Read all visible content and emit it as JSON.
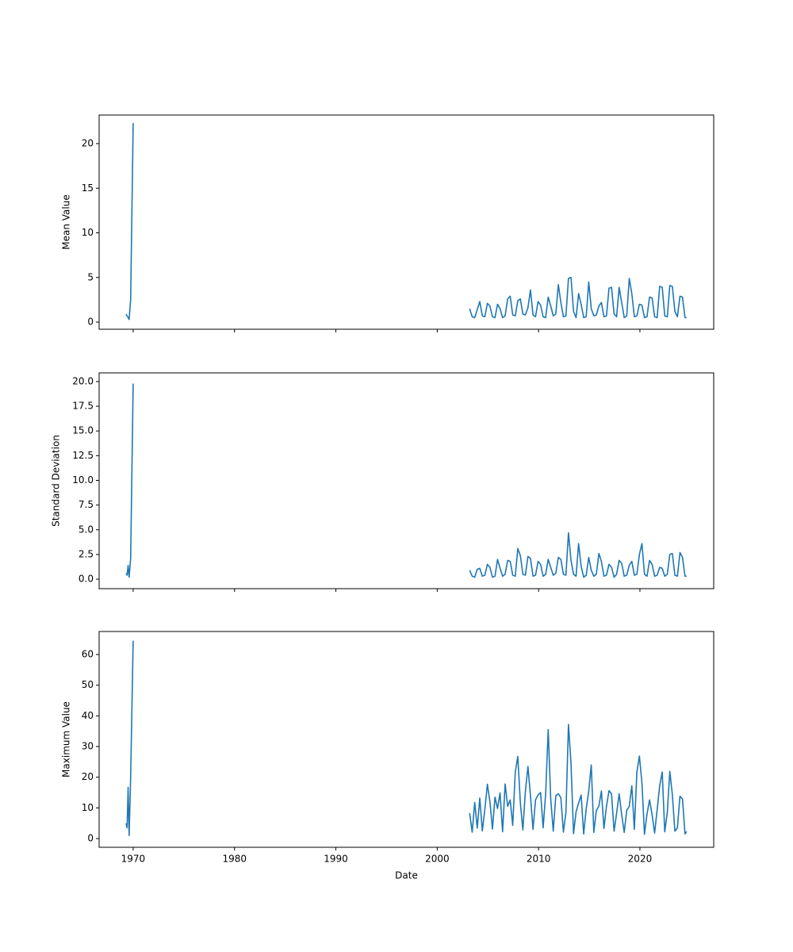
{
  "chart_data": [
    {
      "type": "line",
      "ylabel": "Mean Value",
      "x": [
        1969.3,
        1969.4,
        1969.5,
        1969.6,
        1969.75,
        1970,
        null,
        2003.2,
        2003.45,
        2003.7,
        2003.95,
        2004.2,
        2004.45,
        2004.7,
        2004.95,
        2005.2,
        2005.45,
        2005.7,
        2005.95,
        2006.2,
        2006.45,
        2006.7,
        2006.95,
        2007.2,
        2007.45,
        2007.7,
        2007.95,
        2008.2,
        2008.45,
        2008.7,
        2008.95,
        2009.2,
        2009.45,
        2009.7,
        2009.95,
        2010.2,
        2010.45,
        2010.7,
        2010.95,
        2011.2,
        2011.45,
        2011.7,
        2011.95,
        2012.2,
        2012.45,
        2012.7,
        2012.95,
        2013.2,
        2013.45,
        2013.7,
        2013.95,
        2014.2,
        2014.45,
        2014.7,
        2014.95,
        2015.2,
        2015.45,
        2015.7,
        2015.95,
        2016.2,
        2016.45,
        2016.7,
        2016.95,
        2017.2,
        2017.45,
        2017.7,
        2017.95,
        2018.2,
        2018.45,
        2018.7,
        2018.95,
        2019.2,
        2019.45,
        2019.7,
        2019.95,
        2020.2,
        2020.45,
        2020.7,
        2020.95,
        2021.2,
        2021.45,
        2021.7,
        2021.95,
        2022.2,
        2022.45,
        2022.7,
        2022.95,
        2023.2,
        2023.45,
        2023.7,
        2023.95,
        2024.2,
        2024.45,
        2024.6
      ],
      "series": [
        {
          "color": "#1f77b4",
          "values": [
            0.9,
            0.7,
            0.5,
            0.3,
            2.5,
            22.3,
            null,
            1.5,
            0.6,
            0.5,
            1.4,
            2.3,
            0.7,
            0.6,
            2.1,
            1.8,
            0.6,
            0.5,
            2.0,
            1.5,
            0.5,
            0.7,
            2.6,
            2.9,
            0.8,
            0.7,
            2.4,
            2.6,
            0.9,
            0.8,
            1.6,
            3.6,
            0.8,
            0.6,
            2.3,
            1.9,
            0.6,
            0.5,
            2.8,
            1.8,
            0.7,
            0.9,
            4.2,
            2.2,
            0.6,
            0.7,
            4.9,
            5.0,
            1.2,
            0.5,
            3.2,
            2.0,
            0.5,
            0.6,
            4.5,
            1.5,
            0.7,
            0.8,
            1.8,
            2.2,
            0.6,
            0.7,
            3.8,
            3.9,
            0.9,
            0.6,
            3.9,
            2.2,
            0.5,
            0.7,
            4.9,
            3.2,
            0.6,
            0.7,
            2.0,
            1.9,
            0.5,
            0.6,
            2.8,
            2.7,
            0.6,
            0.5,
            4.0,
            3.9,
            0.7,
            0.6,
            4.1,
            4.0,
            1.2,
            0.6,
            2.9,
            2.8,
            0.5,
            0.5
          ]
        }
      ],
      "xlim": [
        1966.64,
        2027.28
      ],
      "xticks": [
        1970,
        1980,
        1990,
        2000,
        2010,
        2020
      ],
      "ylim": [
        -0.8,
        23.2
      ],
      "yticks": [
        0,
        5,
        10,
        15,
        20
      ]
    },
    {
      "type": "line",
      "ylabel": "Standard Deviation",
      "x": [
        1969.3,
        1969.4,
        1969.5,
        1969.6,
        1969.75,
        1970,
        null,
        2003.2,
        2003.45,
        2003.7,
        2003.95,
        2004.2,
        2004.45,
        2004.7,
        2004.95,
        2005.2,
        2005.45,
        2005.7,
        2005.95,
        2006.2,
        2006.45,
        2006.7,
        2006.95,
        2007.2,
        2007.45,
        2007.7,
        2007.95,
        2008.2,
        2008.45,
        2008.7,
        2008.95,
        2009.2,
        2009.45,
        2009.7,
        2009.95,
        2010.2,
        2010.45,
        2010.7,
        2010.95,
        2011.2,
        2011.45,
        2011.7,
        2011.95,
        2012.2,
        2012.45,
        2012.7,
        2012.95,
        2013.2,
        2013.45,
        2013.7,
        2013.95,
        2014.2,
        2014.45,
        2014.7,
        2014.95,
        2015.2,
        2015.45,
        2015.7,
        2015.95,
        2016.2,
        2016.45,
        2016.7,
        2016.95,
        2017.2,
        2017.45,
        2017.7,
        2017.95,
        2018.2,
        2018.45,
        2018.7,
        2018.95,
        2019.2,
        2019.45,
        2019.7,
        2019.95,
        2020.2,
        2020.45,
        2020.7,
        2020.95,
        2021.2,
        2021.45,
        2021.7,
        2021.95,
        2022.2,
        2022.45,
        2022.7,
        2022.95,
        2023.2,
        2023.45,
        2023.7,
        2023.95,
        2024.2,
        2024.45,
        2024.6
      ],
      "series": [
        {
          "color": "#1f77b4",
          "values": [
            0.6,
            0.4,
            1.4,
            0.2,
            2.1,
            19.8,
            null,
            0.9,
            0.3,
            0.2,
            1.0,
            1.1,
            0.3,
            0.4,
            1.5,
            1.2,
            0.2,
            0.3,
            2.0,
            1.1,
            0.3,
            0.5,
            1.9,
            1.8,
            0.4,
            0.3,
            3.1,
            2.4,
            0.5,
            0.4,
            2.3,
            2.1,
            0.3,
            0.4,
            1.8,
            1.5,
            0.3,
            0.5,
            2.0,
            1.2,
            0.4,
            0.6,
            2.2,
            2.0,
            0.5,
            0.4,
            4.7,
            1.9,
            0.5,
            0.3,
            3.6,
            1.3,
            0.2,
            0.4,
            2.2,
            0.9,
            0.3,
            0.5,
            2.6,
            1.8,
            0.3,
            0.4,
            1.5,
            1.2,
            0.2,
            0.5,
            1.9,
            1.6,
            0.3,
            0.4,
            1.4,
            1.8,
            0.4,
            0.5,
            2.5,
            3.6,
            0.5,
            0.3,
            1.9,
            1.5,
            0.3,
            0.4,
            1.2,
            1.1,
            0.3,
            0.5,
            2.5,
            2.6,
            0.4,
            0.3,
            2.7,
            2.2,
            0.3,
            0.3
          ]
        }
      ],
      "xlim": [
        1966.64,
        2027.28
      ],
      "xticks": [
        1970,
        1980,
        1990,
        2000,
        2010,
        2020
      ],
      "ylim": [
        -0.96,
        20.88
      ],
      "yticks": [
        {
          "value": 0,
          "label": "0.0"
        },
        2.5,
        {
          "value": 5,
          "label": "5.0"
        },
        7.5,
        {
          "value": 10,
          "label": "10.0"
        },
        12.5,
        {
          "value": 15,
          "label": "15.0"
        },
        17.5,
        {
          "value": 20,
          "label": "20.0"
        }
      ]
    },
    {
      "type": "line",
      "ylabel": "Maximum Value",
      "xlabel": "Date",
      "x": [
        1969.3,
        1969.4,
        1969.5,
        1969.6,
        1969.75,
        1970,
        null,
        2003.2,
        2003.45,
        2003.7,
        2003.95,
        2004.2,
        2004.45,
        2004.7,
        2004.95,
        2005.2,
        2005.45,
        2005.7,
        2005.95,
        2006.2,
        2006.45,
        2006.7,
        2006.95,
        2007.2,
        2007.45,
        2007.7,
        2007.95,
        2008.2,
        2008.45,
        2008.7,
        2008.95,
        2009.2,
        2009.45,
        2009.7,
        2009.95,
        2010.2,
        2010.45,
        2010.7,
        2010.95,
        2011.2,
        2011.45,
        2011.7,
        2011.95,
        2012.2,
        2012.45,
        2012.7,
        2012.95,
        2013.2,
        2013.45,
        2013.7,
        2013.95,
        2014.2,
        2014.45,
        2014.7,
        2014.95,
        2015.2,
        2015.45,
        2015.7,
        2015.95,
        2016.2,
        2016.45,
        2016.7,
        2016.95,
        2017.2,
        2017.45,
        2017.7,
        2017.95,
        2018.2,
        2018.45,
        2018.7,
        2018.95,
        2019.2,
        2019.45,
        2019.7,
        2019.95,
        2020.2,
        2020.45,
        2020.7,
        2020.95,
        2021.2,
        2021.45,
        2021.7,
        2021.95,
        2022.2,
        2022.45,
        2022.7,
        2022.95,
        2023.2,
        2023.45,
        2023.7,
        2023.95,
        2024.2,
        2024.45,
        2024.6
      ],
      "series": [
        {
          "color": "#1f77b4",
          "values": [
            5.0,
            3.5,
            16.7,
            1.0,
            20.0,
            64.5,
            null,
            8.3,
            2.1,
            11.8,
            3.4,
            13.2,
            2.5,
            9.6,
            17.7,
            12.0,
            3.1,
            13.5,
            9.8,
            14.9,
            2.2,
            17.8,
            10.5,
            12.6,
            4.3,
            21.6,
            26.8,
            11.8,
            2.8,
            15.4,
            23.5,
            14.0,
            3.0,
            12.6,
            14.2,
            15.0,
            3.5,
            14.6,
            35.5,
            12.9,
            2.4,
            14.0,
            14.6,
            13.3,
            2.1,
            8.5,
            37.2,
            24.6,
            1.6,
            8.7,
            11.6,
            14.2,
            1.5,
            9.7,
            15.4,
            24.0,
            2.0,
            9.1,
            10.6,
            15.5,
            3.3,
            10.5,
            15.6,
            14.6,
            2.4,
            8.2,
            14.6,
            7.8,
            2.0,
            9.2,
            10.5,
            17.2,
            3.0,
            21.7,
            26.9,
            18.1,
            1.4,
            8.0,
            12.6,
            7.8,
            1.8,
            9.4,
            17.2,
            21.7,
            2.2,
            8.5,
            21.9,
            14.3,
            2.4,
            3.5,
            13.8,
            12.9,
            1.5,
            2.3
          ]
        }
      ],
      "xlim": [
        1966.64,
        2027.28
      ],
      "xticks": [
        1970,
        1980,
        1990,
        2000,
        2010,
        2020
      ],
      "ylim": [
        -2.84,
        67.5
      ],
      "yticks": [
        0,
        10,
        20,
        30,
        40,
        50,
        60
      ]
    }
  ]
}
